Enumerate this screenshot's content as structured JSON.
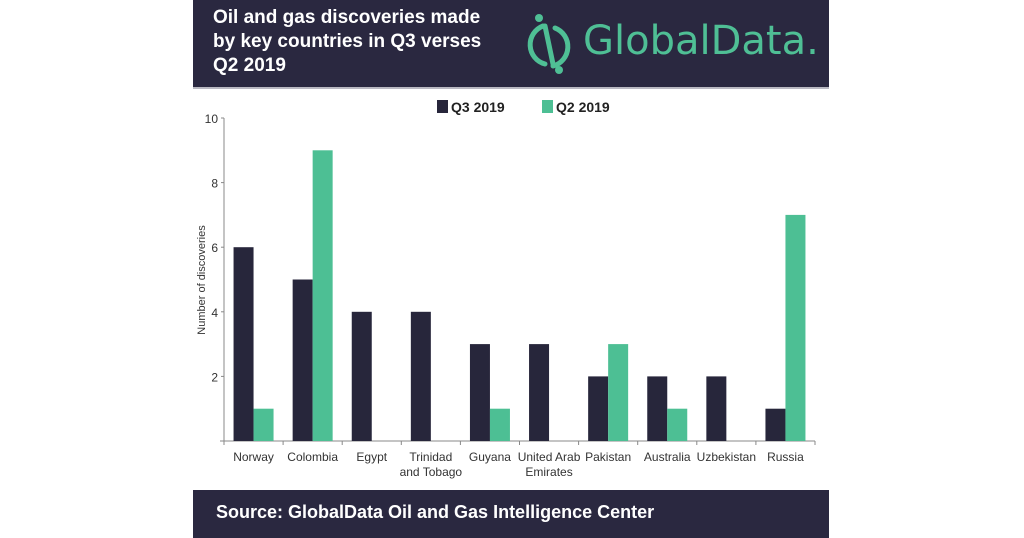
{
  "header": {
    "title": "Oil and gas discoveries made by key countries in Q3 verses Q2 2019",
    "logo_text": "GlobalData.",
    "background": "#2a2840",
    "logo_color": "#4fbf95"
  },
  "footer": {
    "source": "Source:  GlobalData Oil and Gas Intelligence Center"
  },
  "chart_data": {
    "type": "bar",
    "title": "Oil and gas discoveries made by key countries in Q3 verses Q2 2019",
    "xlabel": "",
    "ylabel": "Number of discoveries",
    "ylim": [
      0,
      10
    ],
    "yticks": [
      2,
      4,
      6,
      8,
      10
    ],
    "grid": false,
    "legend_position": "top-center",
    "categories": [
      [
        "Norway"
      ],
      [
        "Colombia"
      ],
      [
        "Egypt"
      ],
      [
        "Trinidad",
        "and Tobago"
      ],
      [
        "Guyana"
      ],
      [
        "United Arab",
        "Emirates"
      ],
      [
        "Pakistan"
      ],
      [
        "Australia"
      ],
      [
        "Uzbekistan"
      ],
      [
        "Russia"
      ]
    ],
    "series": [
      {
        "name": "Q3 2019",
        "color": "#27263b",
        "values": [
          6,
          5,
          4,
          4,
          3,
          3,
          2,
          2,
          2,
          1
        ]
      },
      {
        "name": "Q2 2019",
        "color": "#4dbf94",
        "values": [
          1,
          9,
          0,
          0,
          1,
          0,
          3,
          1,
          0,
          7
        ]
      }
    ]
  }
}
